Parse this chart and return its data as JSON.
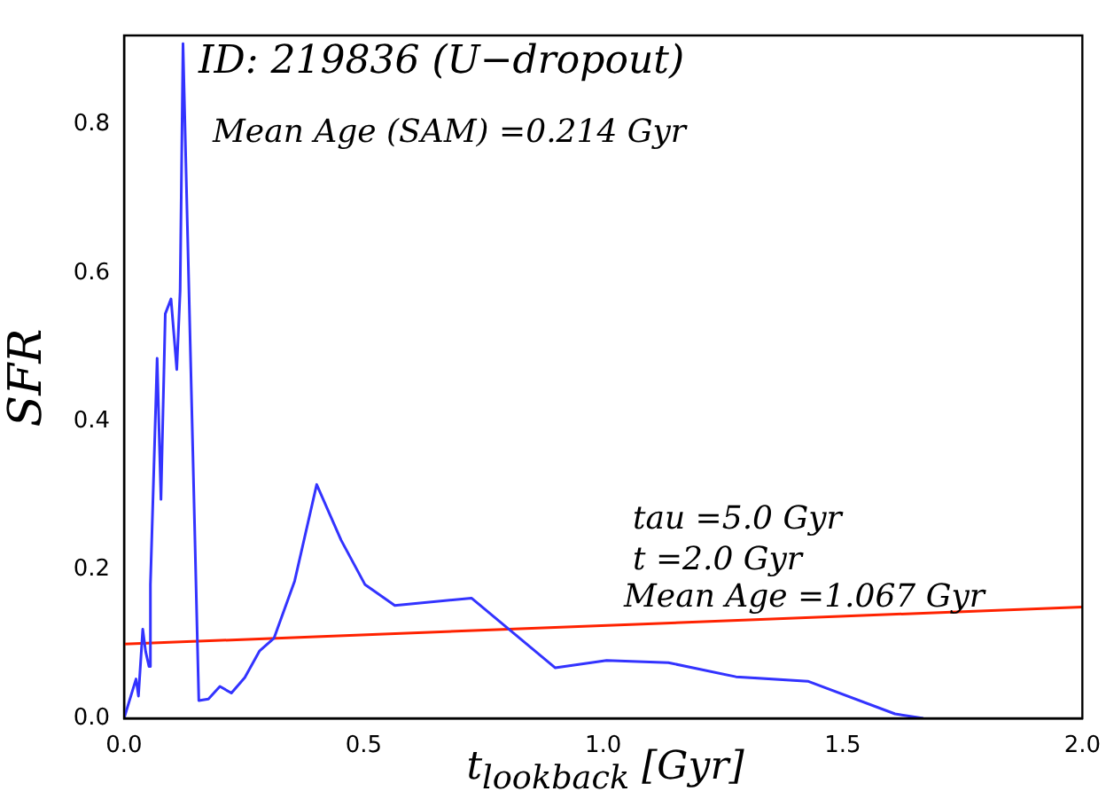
{
  "chart_data": {
    "type": "line",
    "xlabel": "t$_{lookback}$ [Gyr]",
    "ylabel": "SFR",
    "annotations": [
      "ID: 219836 (U−dropout)",
      "Mean Age (SAM) =0.214 Gyr",
      "tau =5.0 Gyr",
      "t =2.0 Gyr",
      "Mean Age =1.067 Gyr"
    ],
    "series": [
      {
        "color": "#3333ff",
        "x": [
          0,
          0.025,
          0.03,
          0.039,
          0.045,
          0.052,
          0.055,
          0.069,
          0.077,
          0.086,
          0.098,
          0.11,
          0.117,
          0.123,
          0.156,
          0.176,
          0.2,
          0.224,
          0.252,
          0.283,
          0.313,
          0.356,
          0.402,
          0.453,
          0.503,
          0.565,
          0.725,
          0.9,
          1.007,
          1.136,
          1.277,
          1.427,
          1.609,
          1.668
        ],
        "values": [
          0,
          0.053,
          0.03,
          0.12,
          0.09,
          0.07,
          0.18,
          0.485,
          0.295,
          0.545,
          0.565,
          0.47,
          0.576,
          0.909,
          0.024,
          0.026,
          0.043,
          0.034,
          0.055,
          0.091,
          0.108,
          0.185,
          0.315,
          0.24,
          0.18,
          0.152,
          0.162,
          0.068,
          0.078,
          0.075,
          0.056,
          0.05,
          0.006,
          0
        ]
      },
      {
        "color": "#ff2200",
        "x": [
          0,
          2
        ],
        "values": [
          0.1,
          0.15
        ]
      }
    ],
    "xlim": [
      0,
      2
    ],
    "xticks": [
      {
        "value": 0,
        "label": "0.0"
      },
      0.5,
      {
        "value": 1,
        "label": "1.0"
      },
      1.5,
      {
        "value": 2,
        "label": "2.0"
      }
    ],
    "ylim": [
      0,
      0.92
    ],
    "yticks": [
      {
        "value": 0,
        "label": "0.0"
      },
      0.2,
      0.4,
      0.6,
      0.8
    ],
    "grid": false,
    "legend": false,
    "marker": "none",
    "line_style": "solid"
  }
}
